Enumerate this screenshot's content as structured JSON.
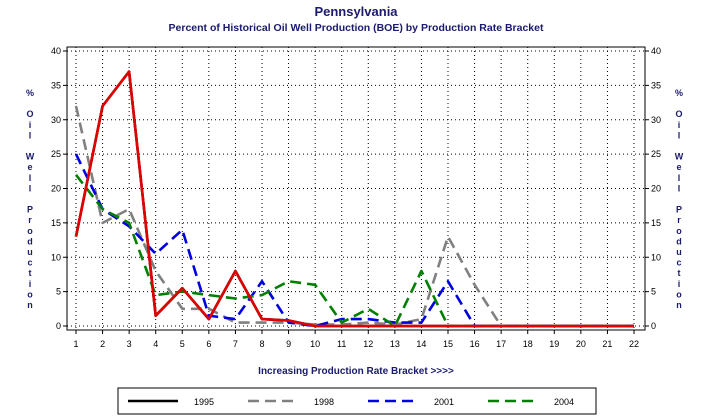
{
  "chart_data": {
    "type": "line",
    "title": "Pennsylvania",
    "subtitle": "Percent of Historical Oil Well Production (BOE) by Production Rate Bracket",
    "xlabel": "Increasing Production Rate Bracket >>>>",
    "ylabel": "% Oil Well Production",
    "x": [
      1,
      2,
      3,
      4,
      5,
      6,
      7,
      8,
      9,
      10,
      11,
      12,
      13,
      14,
      15,
      16,
      17,
      18,
      19,
      20,
      21,
      22
    ],
    "xlim": [
      1,
      22
    ],
    "ylim": [
      0,
      40
    ],
    "yticks": [
      0,
      5,
      10,
      15,
      20,
      25,
      30,
      35,
      40
    ],
    "grid": true,
    "legend_position": "bottom",
    "series": [
      {
        "name": "1995",
        "color": "#000000",
        "dash": "solid",
        "values": [
          13,
          32,
          37,
          1.5,
          5.5,
          1,
          8,
          1,
          0.8,
          0,
          0,
          0,
          0,
          0,
          0,
          0,
          0,
          0,
          0,
          0,
          0,
          0
        ]
      },
      {
        "name": "1998",
        "color": "#808080",
        "dash": "dashed",
        "values": [
          32,
          15,
          17,
          8,
          2.5,
          2.5,
          0.5,
          0.5,
          0.5,
          0.2,
          0.2,
          0.5,
          0.2,
          1,
          13,
          6,
          0,
          0,
          0,
          0,
          0,
          0
        ]
      },
      {
        "name": "2001",
        "color": "#0000e0",
        "dash": "dashed",
        "values": [
          25,
          17,
          14.5,
          10.5,
          14,
          1.5,
          1,
          6.5,
          0.5,
          0,
          1,
          1,
          0.5,
          0.5,
          6.5,
          0,
          0,
          0,
          0,
          0,
          0,
          0
        ]
      },
      {
        "name": "2004",
        "color": "#008000",
        "dash": "dashed",
        "values": [
          22,
          17,
          15,
          4.5,
          5,
          4.5,
          4,
          4.5,
          6.5,
          6,
          0.5,
          2.5,
          0,
          8,
          0,
          0,
          0,
          0,
          0,
          0,
          0,
          0
        ]
      },
      {
        "name": "",
        "color": "#e00000",
        "dash": "solid",
        "values": [
          13,
          32,
          37,
          1.5,
          5.5,
          1,
          8,
          1,
          0.8,
          0,
          0,
          0,
          0,
          0,
          0,
          0,
          0,
          0,
          0,
          0,
          0,
          0
        ]
      }
    ]
  }
}
